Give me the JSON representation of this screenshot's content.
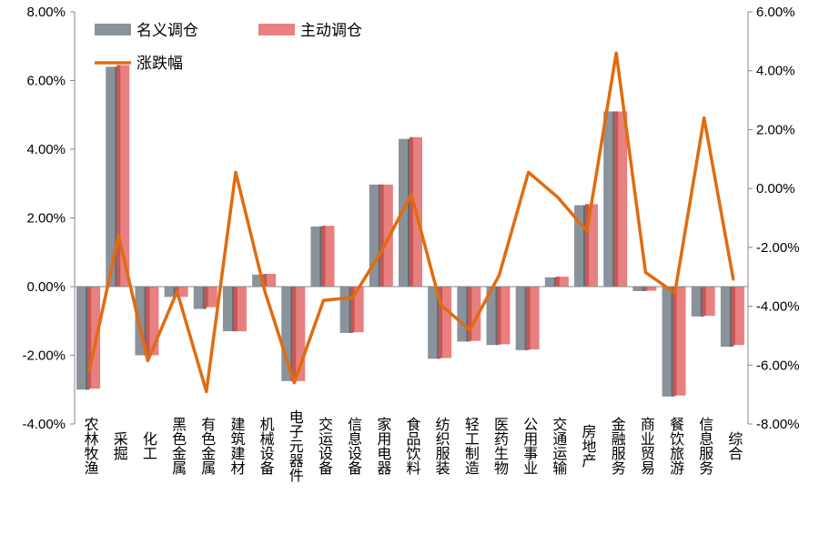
{
  "chart_data": {
    "type": "bar",
    "categories": [
      "农林牧渔",
      "采掘",
      "化工",
      "黑色金属",
      "有色金属",
      "建筑建材",
      "机械设备",
      "电子元器件",
      "交运设备",
      "信息设备",
      "家用电器",
      "食品饮料",
      "纺织服装",
      "轻工制造",
      "医药生物",
      "公用事业",
      "交通运输",
      "房地产",
      "金融服务",
      "商业贸易",
      "餐饮旅游",
      "信息服务",
      "综合"
    ],
    "series": [
      {
        "name": "名义调仓",
        "axis": "left",
        "kind": "bar",
        "color": "#8a929b",
        "values": [
          -3.0,
          6.4,
          -2.0,
          -0.3,
          -0.65,
          -1.3,
          0.35,
          -2.75,
          1.75,
          -1.35,
          2.97,
          4.3,
          -2.1,
          -1.6,
          -1.7,
          -1.85,
          0.27,
          2.37,
          5.1,
          -0.13,
          -3.2,
          -0.87,
          -1.75
        ]
      },
      {
        "name": "主动调仓",
        "axis": "left",
        "kind": "bar",
        "color": "#e88080",
        "values": [
          -2.97,
          6.45,
          -2.0,
          -0.3,
          -0.6,
          -1.3,
          0.37,
          -2.75,
          1.77,
          -1.33,
          2.97,
          4.35,
          -2.08,
          -1.58,
          -1.68,
          -1.83,
          0.29,
          2.4,
          5.1,
          -0.12,
          -3.17,
          -0.85,
          -1.7
        ]
      },
      {
        "name": "涨跌幅",
        "axis": "right",
        "kind": "line",
        "color": "#e06c10",
        "values": [
          -6.2,
          -1.6,
          -5.85,
          -3.5,
          -6.9,
          0.55,
          -3.5,
          -6.6,
          -3.8,
          -3.7,
          -2.1,
          -0.2,
          -3.95,
          -4.8,
          -2.95,
          0.55,
          -0.3,
          -1.45,
          4.6,
          -2.85,
          -3.55,
          2.4,
          -3.1
        ]
      }
    ],
    "left_axis": {
      "ylim": [
        -4,
        8
      ],
      "ticks": [
        "-4.00%",
        "-2.00%",
        "0.00%",
        "2.00%",
        "4.00%",
        "6.00%",
        "8.00%"
      ]
    },
    "right_axis": {
      "ylim": [
        -8,
        6
      ],
      "ticks": [
        "-8.00%",
        "-6.00%",
        "-4.00%",
        "-2.00%",
        "0.00%",
        "2.00%",
        "4.00%",
        "6.00%"
      ]
    },
    "legend_placement": "top-left",
    "grid": false
  }
}
